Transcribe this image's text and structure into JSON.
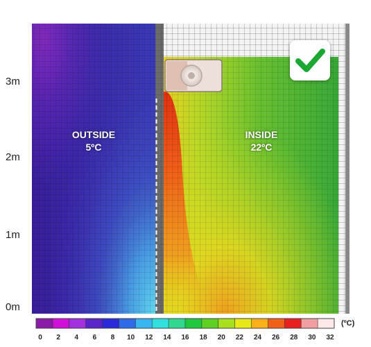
{
  "y_axis": {
    "ticks": [
      "3m",
      "2m",
      "1m",
      "0m"
    ]
  },
  "zones": {
    "outside": {
      "name": "OUTSIDE",
      "temperature": "5ºC"
    },
    "inside": {
      "name": "INSIDE",
      "temperature": "22ºC"
    }
  },
  "colorbar": {
    "ticks": [
      "0",
      "2",
      "4",
      "6",
      "8",
      "10",
      "12",
      "14",
      "16",
      "18",
      "20",
      "22",
      "24",
      "26",
      "28",
      "30",
      "32"
    ],
    "unit": "(ºC)",
    "colors": [
      "#8b1aa8",
      "#d010d8",
      "#a030e0",
      "#5a25c8",
      "#2a2ad8",
      "#2f6ae8",
      "#38b4f0",
      "#30e0e0",
      "#30d890",
      "#20c840",
      "#60d020",
      "#a8e020",
      "#e8e818",
      "#f8b018",
      "#f06018",
      "#e82020",
      "#f0a0a0",
      "#ffe8e8"
    ]
  },
  "status": {
    "icon": "check-icon",
    "color": "#1aa832"
  }
}
